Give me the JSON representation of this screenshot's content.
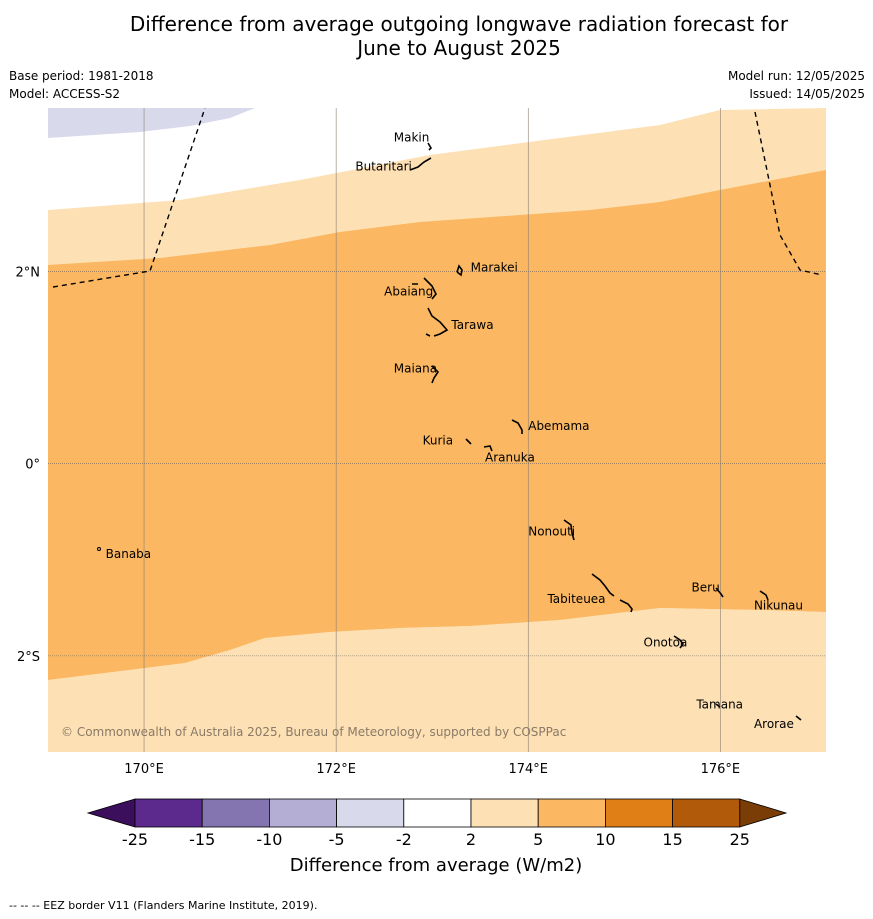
{
  "header": {
    "title_line1": "Difference from average outgoing longwave radiation forecast for",
    "title_line2": "June to August 2025",
    "base_period": "Base period: 1981-2018",
    "model": "Model: ACCESS-S2",
    "model_run": "Model run: 12/05/2025",
    "issued": "Issued: 14/05/2025"
  },
  "map": {
    "lon_range": [
      169,
      177.1
    ],
    "lat_range": [
      -3,
      3.7
    ],
    "lon_ticks": [
      170,
      172,
      174,
      176
    ],
    "lon_tick_labels": [
      "170°E",
      "172°E",
      "174°E",
      "176°E"
    ],
    "lat_ticks": [
      2,
      0,
      -2
    ],
    "lat_tick_labels": [
      "2°N",
      "0°",
      "2°S"
    ],
    "copyright": "© Commonwealth of Australia 2025, Bureau of Meteorology, supported by COSPPac",
    "places": [
      {
        "name": "Makin",
        "lon": 172.6,
        "lat": 3.35
      },
      {
        "name": "Butaritari",
        "lon": 172.2,
        "lat": 3.05
      },
      {
        "name": "Marakei",
        "lon": 173.4,
        "lat": 2.0
      },
      {
        "name": "Abaiang",
        "lon": 172.5,
        "lat": 1.75
      },
      {
        "name": "Tarawa",
        "lon": 173.2,
        "lat": 1.4
      },
      {
        "name": "Maiana",
        "lon": 172.6,
        "lat": 0.95
      },
      {
        "name": "Abemama",
        "lon": 174.0,
        "lat": 0.35
      },
      {
        "name": "Kuria",
        "lon": 172.9,
        "lat": 0.2
      },
      {
        "name": "Aranuka",
        "lon": 173.55,
        "lat": 0.02
      },
      {
        "name": "Nonouti",
        "lon": 174.0,
        "lat": -0.75
      },
      {
        "name": "Banaba",
        "lon": 169.6,
        "lat": -0.98
      },
      {
        "name": "Beru",
        "lon": 175.7,
        "lat": -1.33
      },
      {
        "name": "Nikunau",
        "lon": 176.35,
        "lat": -1.52
      },
      {
        "name": "Tabiteuea",
        "lon": 174.2,
        "lat": -1.45
      },
      {
        "name": "Onotoa",
        "lon": 175.2,
        "lat": -1.9
      },
      {
        "name": "Tamana",
        "lon": 175.75,
        "lat": -2.55
      },
      {
        "name": "Arorae",
        "lon": 176.35,
        "lat": -2.75
      }
    ]
  },
  "legend": {
    "title": "Difference from average (W/m2)",
    "bounds": [
      "-25",
      "-15",
      "-10",
      "-5",
      "-2",
      "2",
      "5",
      "10",
      "15",
      "25"
    ],
    "colors": [
      "#3b0f5c",
      "#5b2a8c",
      "#8475b0",
      "#b4aed4",
      "#d9d9ec",
      "#ffffff",
      "#fde0b4",
      "#fbb761",
      "#e07f15",
      "#b05a0a",
      "#7a3d06"
    ]
  },
  "footnote": "--  --  -- EEZ border V11 (Flanders Marine Institute, 2019)."
}
